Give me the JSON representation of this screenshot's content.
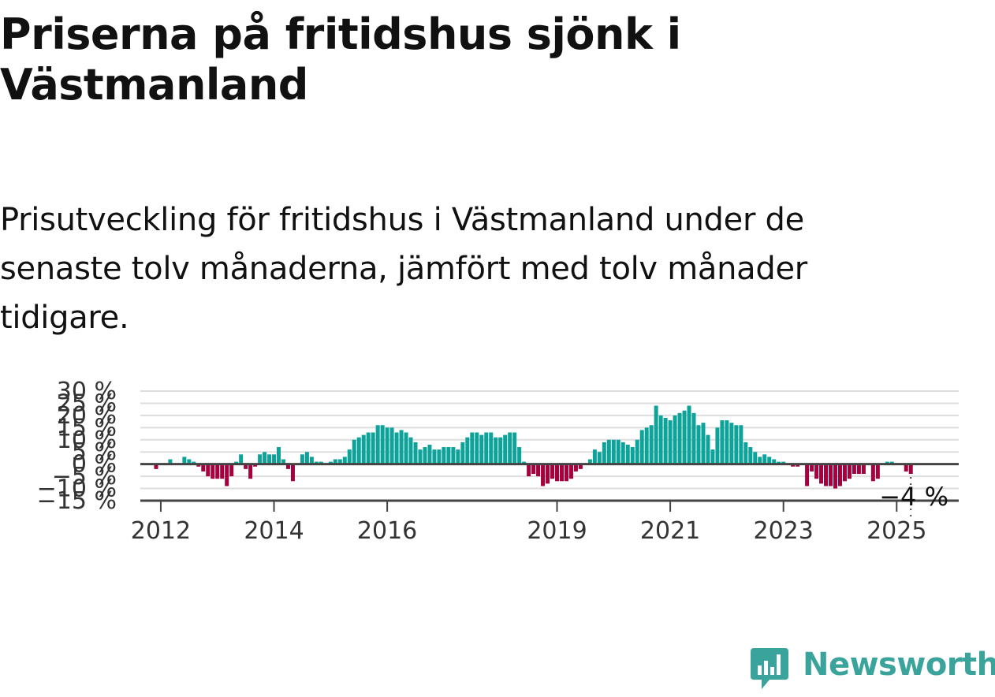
{
  "title": "Priserna på fritidshus sjönk i Västmanland",
  "subtitle": "Prisutveckling för fritidshus i Västmanland under de senaste tolv månaderna, jämfört med tolv månader tidigare.",
  "brand": {
    "name": "Newsworthy",
    "color": "#3aa39b"
  },
  "colors": {
    "positive": "#0da39a",
    "negative": "#a6003f",
    "grid": "#dddddd",
    "zero_line": "#444444"
  },
  "chart_data": {
    "type": "bar",
    "start": "2011-09",
    "frequency": "monthly",
    "grid": true,
    "ylim": [
      -15,
      30
    ],
    "y_ticks": [
      -15,
      -10,
      -5,
      0,
      5,
      10,
      15,
      20,
      25,
      30
    ],
    "y_tick_labels": [
      "−15 %",
      "−10 %",
      "−5 %",
      "0 %",
      "5 %",
      "10 %",
      "15 %",
      "20 %",
      "25 %",
      "30 %"
    ],
    "x_tick_labels": [
      "2012",
      "2014",
      "2016",
      "2019",
      "2021",
      "2023",
      "2025"
    ],
    "x_tick_months": [
      4,
      28,
      52,
      88,
      112,
      136,
      160
    ],
    "annotation": "−4 %",
    "values": [
      0,
      0,
      0,
      -2,
      0,
      0,
      2,
      0,
      0,
      3,
      2,
      1,
      -1,
      -3,
      -5,
      -6,
      -6,
      -6,
      -9,
      -5,
      1,
      4,
      -2,
      -6,
      -1,
      4,
      5,
      4,
      4,
      7,
      2,
      -2,
      -7,
      0,
      4,
      5,
      3,
      1,
      1,
      0,
      1,
      2,
      2,
      3,
      6,
      10,
      11,
      12,
      13,
      13,
      16,
      16,
      15,
      15,
      13,
      14,
      13,
      11,
      9,
      6,
      7,
      8,
      6,
      6,
      7,
      7,
      7,
      6,
      9,
      11,
      13,
      13,
      12,
      13,
      13,
      11,
      11,
      12,
      13,
      13,
      7,
      1,
      -5,
      -4,
      -5,
      -9,
      -8,
      -6,
      -7,
      -7,
      -7,
      -6,
      -3,
      -2,
      0,
      2,
      6,
      5,
      9,
      10,
      10,
      10,
      9,
      8,
      7,
      10,
      14,
      15,
      16,
      24,
      20,
      19,
      18,
      20,
      21,
      22,
      24,
      21,
      16,
      17,
      12,
      6,
      15,
      18,
      18,
      17,
      16,
      16,
      9,
      7,
      5,
      3,
      4,
      3,
      2,
      1,
      1,
      0,
      -1,
      -1,
      0,
      -9,
      -3,
      -6,
      -8,
      -9,
      -9,
      -10,
      -9,
      -7,
      -6,
      -4,
      -4,
      -4,
      0,
      -7,
      -6,
      0,
      1,
      1,
      0,
      0,
      -3,
      -4
    ]
  }
}
